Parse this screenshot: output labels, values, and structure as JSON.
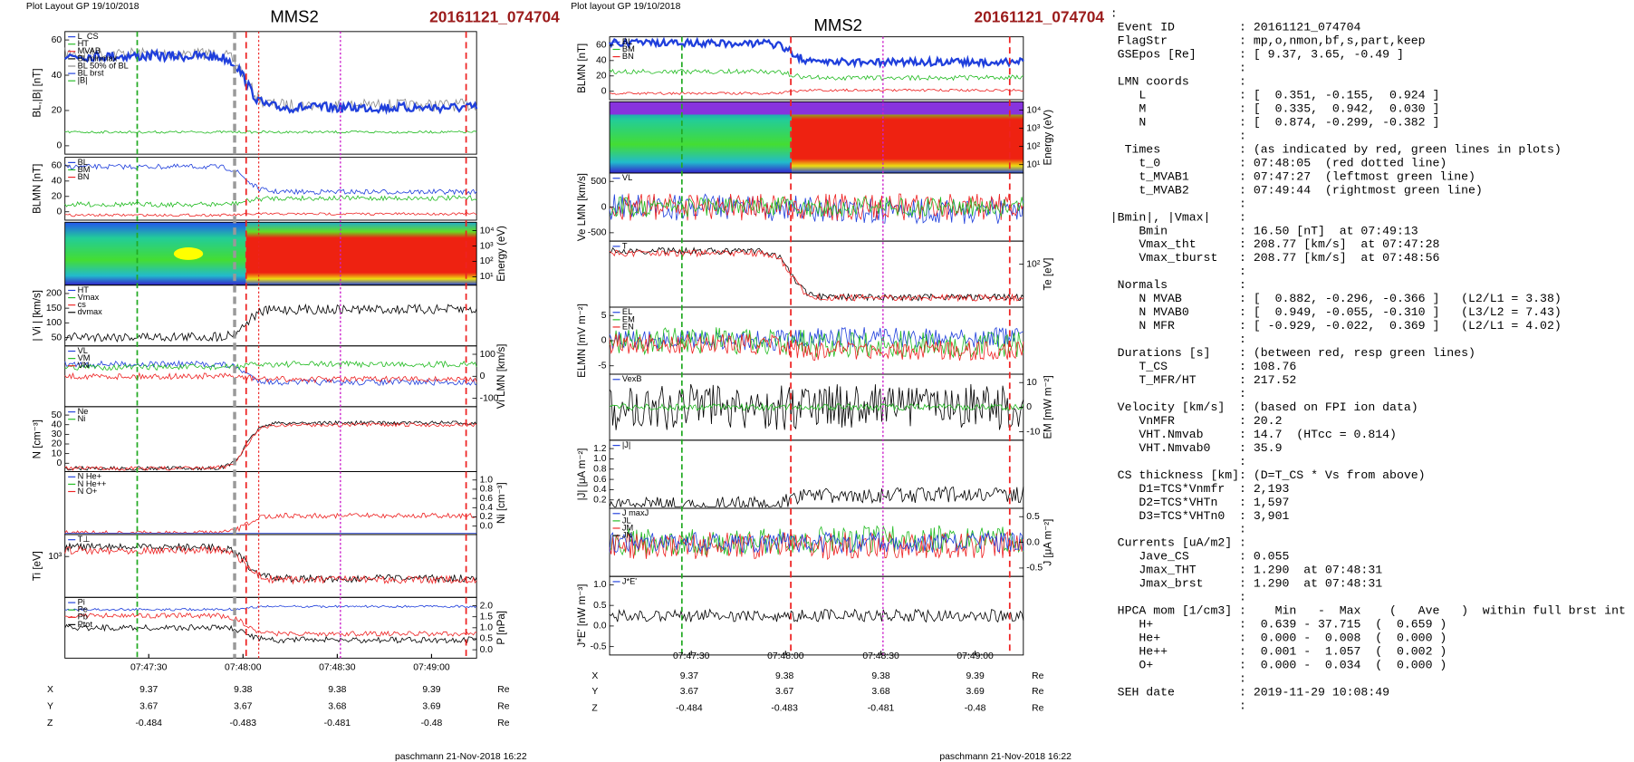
{
  "left": {
    "header": "Plot Layout GP 19/10/2018",
    "spacecraft": "MMS2",
    "event": "20161121_074704",
    "panels": [
      {
        "ylabel": "BL,|B| [nT]",
        "side": "left",
        "ticks": [
          "60",
          "40",
          "20",
          "0"
        ],
        "legend": [
          "L_CS",
          "HT",
          "MVAB",
          "BLminmax",
          "BL 50% of BL",
          "BL brst",
          "|B|"
        ]
      },
      {
        "ylabel": "BLMN [nT]",
        "side": "left",
        "ticks": [
          "60",
          "40",
          "20",
          "0"
        ],
        "legend": [
          "BL",
          "BM",
          "BN"
        ]
      },
      {
        "ylabel": "Energy (eV)",
        "side": "right",
        "ticks": [
          "10⁴",
          "10³",
          "10²",
          "10¹"
        ],
        "legend": []
      },
      {
        "ylabel": "| Vi | [km/s]",
        "side": "left",
        "ticks": [
          "200",
          "150",
          "100",
          "50"
        ],
        "legend": [
          "HT",
          "Vmax",
          "cs",
          "dvmax"
        ]
      },
      {
        "ylabel": "Vi LMN [km/s]",
        "side": "right",
        "ticks": [
          "100",
          "0",
          "-100"
        ],
        "legend": [
          "VL",
          "VM",
          "VN"
        ]
      },
      {
        "ylabel": "N [cm⁻³]",
        "side": "left",
        "ticks": [
          "50",
          "40",
          "30",
          "20",
          "10",
          "0"
        ],
        "legend": [
          "Ne",
          "Ni"
        ]
      },
      {
        "ylabel": "Ni [cm⁻³]",
        "side": "right",
        "ticks": [
          "1.0",
          "0.8",
          "0.6",
          "0.4",
          "0.2",
          "0.0"
        ],
        "legend": [
          "N  He+",
          "N  He++",
          "N  O+"
        ]
      },
      {
        "ylabel": "Ti [eV]",
        "side": "left",
        "ticks": [
          "10³"
        ],
        "legend": [
          "T⊥"
        ]
      },
      {
        "ylabel": "P [nPa]",
        "side": "right",
        "ticks": [
          "2.0",
          "1.5",
          "1.0",
          "0.5",
          "0.0"
        ],
        "legend": [
          "Pi",
          "Pe",
          "Pb",
          "Ptot"
        ]
      }
    ],
    "xticks": [
      "07:47:30",
      "07:48:00",
      "07:48:30",
      "07:49:00"
    ],
    "positions": [
      {
        "label": "X",
        "values": [
          "9.37",
          "9.38",
          "9.38",
          "9.39"
        ],
        "unit": "Re"
      },
      {
        "label": "Y",
        "values": [
          "3.67",
          "3.67",
          "3.68",
          "3.69"
        ],
        "unit": "Re"
      },
      {
        "label": "Z",
        "values": [
          "-0.484",
          "-0.483",
          "-0.481",
          "-0.48"
        ],
        "unit": "Re"
      }
    ],
    "footer": "paschmann 21-Nov-2018 16:22"
  },
  "middle": {
    "header": "Plot layout GP 19/10/2018",
    "spacecraft": "MMS2",
    "event": "20161121_074704",
    "panels": [
      {
        "ylabel": "BLMN [nT]",
        "side": "left",
        "ticks": [
          "60",
          "40",
          "20",
          "0"
        ],
        "legend": [
          "BL",
          "BM",
          "BN"
        ]
      },
      {
        "ylabel": "Energy (eV)",
        "side": "right",
        "ticks": [
          "10⁴",
          "10³",
          "10²",
          "10¹"
        ],
        "legend": []
      },
      {
        "ylabel": "Ve LMN [km/s]",
        "side": "left",
        "ticks": [
          "500",
          "0",
          "-500"
        ],
        "legend": [
          "VL"
        ]
      },
      {
        "ylabel": "Te [eV]",
        "side": "right",
        "ticks": [
          "10²"
        ],
        "legend": [
          "T"
        ]
      },
      {
        "ylabel": "ELMN [mV m⁻²]",
        "side": "left",
        "ticks": [
          "5",
          "0",
          "-5"
        ],
        "legend": [
          "EL",
          "EM",
          "EN"
        ]
      },
      {
        "ylabel": "EM [mW m⁻²]",
        "side": "right",
        "ticks": [
          "10",
          "0",
          "-10"
        ],
        "legend": [
          "VexB"
        ]
      },
      {
        "ylabel": "|J| [μA m⁻²]",
        "side": "left",
        "ticks": [
          "1.2",
          "1.0",
          "0.8",
          "0.6",
          "0.4",
          "0.2"
        ],
        "legend": [
          "|J|"
        ]
      },
      {
        "ylabel": "J [μA m⁻²]",
        "side": "right",
        "ticks": [
          "0.5",
          "0.0",
          "-0.5"
        ],
        "legend": [
          "J maxJ",
          "JL",
          "JM",
          "JN"
        ]
      },
      {
        "ylabel": "J*E' [nW m⁻³]",
        "side": "left",
        "ticks": [
          "1.0",
          "0.5",
          "0.0",
          "-0.5"
        ],
        "legend": [
          "J*E'"
        ]
      }
    ],
    "xticks": [
      "07:47:30",
      "07:48:00",
      "07:48:30",
      "07:49:00"
    ],
    "positions": [
      {
        "label": "X",
        "values": [
          "9.37",
          "9.38",
          "9.38",
          "9.39"
        ],
        "unit": "Re"
      },
      {
        "label": "Y",
        "values": [
          "3.67",
          "3.67",
          "3.68",
          "3.69"
        ],
        "unit": "Re"
      },
      {
        "label": "Z",
        "values": [
          "-0.484",
          "-0.483",
          "-0.481",
          "-0.48"
        ],
        "unit": "Re"
      }
    ],
    "footer": "paschmann 21-Nov-2018 16:22"
  },
  "info": {
    "lines": [
      ":",
      " Event ID         : 20161121_074704",
      " FlagStr          : mp,o,nmon,bf,s,part,keep",
      " GSEpos [Re]      : [ 9.37, 3.65, -0.49 ]",
      "                  :",
      " LMN coords       :",
      "    L             : [  0.351, -0.155,  0.924 ]",
      "    M             : [  0.335,  0.942,  0.030 ]",
      "    N             : [  0.874, -0.299, -0.382 ]",
      "                  :",
      "  Times           : (as indicated by red, green lines in plots)",
      "    t_0           : 07:48:05  (red dotted line)",
      "    t_MVAB1       : 07:47:27  (leftmost green line)",
      "    t_MVAB2       : 07:49:44  (rightmost green line)",
      "                  :",
      "|Bmin|, |Vmax|    :",
      "    Bmin          : 16.50 [nT]  at 07:49:13",
      "    Vmax_tht      : 208.77 [km/s]  at 07:47:28",
      "    Vmax_tburst   : 208.77 [km/s]  at 07:48:56",
      "                  :",
      " Normals          :",
      "    N MVAB        : [  0.882, -0.296, -0.366 ]   (L2/L1 = 3.38)",
      "    N MVAB0       : [  0.949, -0.055, -0.310 ]   (L3/L2 = 7.43)",
      "    N MFR         : [ -0.929, -0.022,  0.369 ]   (L2/L1 = 4.02)",
      "                  :",
      " Durations [s]    : (between red, resp green lines)",
      "    T_CS          : 108.76",
      "    T_MFR/HT      : 217.52",
      "                  :",
      " Velocity [km/s]  : (based on FPI ion data)",
      "    VnMFR         : 20.2",
      "    VHT.Nmvab     : 14.7  (HTcc = 0.814)",
      "    VHT.Nmvab0    : 35.9",
      "                  :",
      " CS thickness [km]: (D=T_CS * Vs from above)",
      "    D1=TCS*Vnmfr  : 2,193",
      "    D2=TCS*VHTn   : 1,597",
      "    D3=TCS*VHTn0  : 3,901",
      "                  :",
      " Currents [uA/m2] :",
      "    Jave_CS       : 0.055",
      "    Jmax_THT      : 1.290  at 07:48:31",
      "    Jmax_brst     : 1.290  at 07:48:31",
      "                  :",
      " HPCA mom [1/cm3] :    Min   -  Max    (   Ave   )  within full brst int",
      "    H+            :  0.639 - 37.715  (  0.659 )",
      "    He+           :  0.000 -  0.008  (  0.000 )",
      "    He++          :  0.001 -  1.057  (  0.002 )",
      "    O+            :  0.000 -  0.034  (  0.000 )",
      "                  :",
      " SEH date         : 2019-11-29 10:08:49",
      "                  :"
    ]
  }
}
